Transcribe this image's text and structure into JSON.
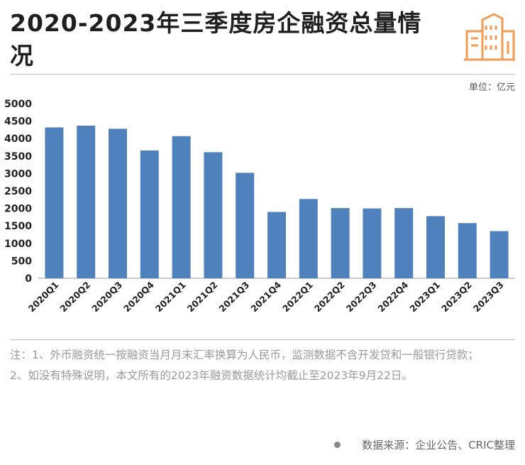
{
  "title": "2020-2023年三季度房企融资总量情况",
  "unit_label": "单位：亿元",
  "notes": [
    "注：1、外币融资统一按融资当月月末汇率换算为人民币，监测数据不含开发贷和一般银行贷款；",
    "2、如没有特殊说明，本文所有的2023年融资数据统计均截止至2023年9月22日。"
  ],
  "source": "数据来源：企业公告、CRIC整理",
  "colors": {
    "bar": "#4f81bd",
    "logo": "#f29b55"
  },
  "chart_data": {
    "type": "bar",
    "title": "2020-2023年三季度房企融资总量情况",
    "xlabel": "",
    "ylabel": "单位：亿元",
    "categories": [
      "2020Q1",
      "2020Q2",
      "2020Q3",
      "2020Q4",
      "2021Q1",
      "2021Q2",
      "2021Q3",
      "2021Q4",
      "2022Q1",
      "2022Q2",
      "2022Q3",
      "2022Q4",
      "2023Q1",
      "2023Q2",
      "2023Q3"
    ],
    "values": [
      4320,
      4370,
      4280,
      3660,
      4070,
      3610,
      3020,
      1900,
      2270,
      2010,
      2000,
      2010,
      1780,
      1580,
      1350
    ],
    "ylim": [
      0,
      5000
    ],
    "yticks": [
      0,
      500,
      1000,
      1500,
      2000,
      2500,
      3000,
      3500,
      4000,
      4500,
      5000
    ],
    "grid": false
  }
}
